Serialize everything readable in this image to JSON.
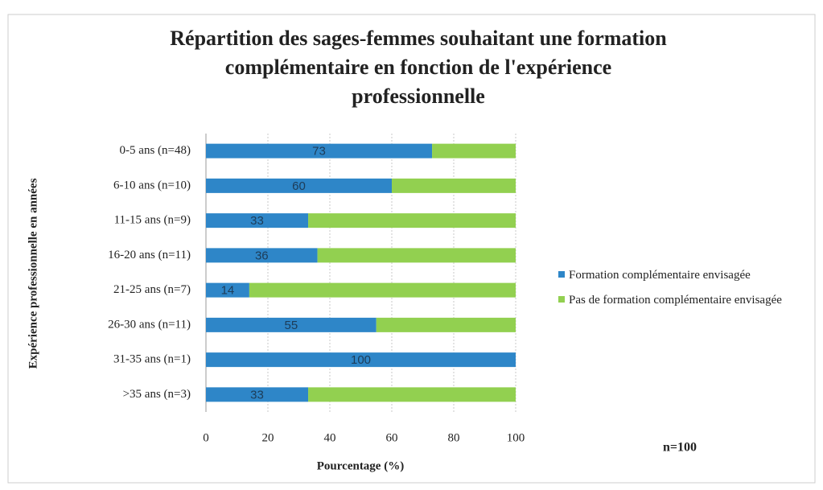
{
  "chart_data": {
    "type": "bar",
    "stacked": true,
    "orientation": "horizontal",
    "title": "Répartition des sages-femmes souhaitant une formation complémentaire en fonction de l'expérience professionnelle",
    "categories": [
      "0-5 ans (n=48)",
      "6-10 ans (n=10)",
      "11-15 ans (n=9)",
      "16-20 ans (n=11)",
      "21-25 ans (n=7)",
      "26-30 ans (n=11)",
      "31-35 ans (n=1)",
      ">35 ans (n=3)"
    ],
    "series": [
      {
        "name": "Formation complémentaire envisagée",
        "color": "#2e86c8",
        "values": [
          73,
          60,
          33,
          36,
          14,
          55,
          100,
          33
        ]
      },
      {
        "name": "Pas de formation complémentaire envisagée",
        "color": "#92d050",
        "values": [
          27,
          40,
          67,
          64,
          86,
          45,
          0,
          67
        ]
      }
    ],
    "xlim": [
      0,
      100
    ],
    "xticks": [
      0,
      20,
      40,
      60,
      80,
      100
    ],
    "grid": true,
    "x_label": "Pourcentage (%)",
    "y_label": "Expérience professionnelle en années",
    "annotation": "n=100",
    "legend": "right"
  }
}
